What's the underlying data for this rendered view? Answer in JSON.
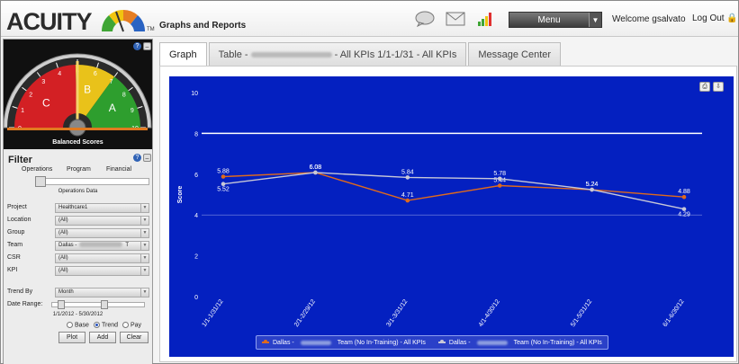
{
  "app": {
    "logo_text": "ACUITY",
    "logo_tm": "TM",
    "title": "Graphs and Reports",
    "menu_label": "Menu",
    "welcome": "Welcome gsalvato",
    "logout": "Log Out"
  },
  "gauge": {
    "caption": "Balanced Scores",
    "needle_value": 5,
    "zones": [
      "C",
      "B",
      "A"
    ],
    "ticks": [
      "0",
      "1",
      "2",
      "3",
      "4",
      "5",
      "6",
      "7",
      "8",
      "9",
      "10"
    ]
  },
  "filter": {
    "title": "Filter",
    "categories": [
      "Operations",
      "Program",
      "Financial"
    ],
    "slider_caption": "Operations Data",
    "fields": [
      {
        "label": "Project",
        "value": "Healthcare1"
      },
      {
        "label": "Location",
        "value": "(All)"
      },
      {
        "label": "Group",
        "value": "(All)"
      },
      {
        "label": "Team",
        "value": "Dallas -",
        "value_suffix": "T"
      },
      {
        "label": "CSR",
        "value": "(All)"
      },
      {
        "label": "KPI",
        "value": "(All)"
      },
      {
        "label": "Trend By",
        "value": "Month"
      }
    ],
    "date_range_label": "Date Range:",
    "date_range": "1/1/2012 - 5/30/2012",
    "radio_options": [
      "Base",
      "Trend",
      "Pay"
    ],
    "radio_selected": "Trend",
    "buttons": [
      "Plot",
      "Add",
      "Clear"
    ]
  },
  "tabs": [
    {
      "label": "Graph",
      "active": true
    },
    {
      "prefix": "Table - ",
      "suffix": " - All KPIs 1/1-1/31 - All KPIs",
      "active": false
    },
    {
      "label": "Message Center",
      "active": false
    }
  ],
  "chart_data": {
    "type": "line",
    "ylabel": "Score",
    "ylim": [
      0,
      10
    ],
    "yticks": [
      0,
      2,
      4,
      6,
      8,
      10
    ],
    "reference_line": 8,
    "categories": [
      "1/1-1/31/12",
      "2/1-2/29/12",
      "3/1-3/31/12",
      "4/1-4/30/12",
      "5/1-5/31/12",
      "6/1-6/30/12"
    ],
    "series": [
      {
        "legend_prefix": "Dallas - ",
        "legend_suffix": " Team (No In-Training) - All KPIs",
        "color": "#e06a1c",
        "values": [
          5.88,
          6.08,
          4.71,
          5.44,
          5.24,
          4.88
        ]
      },
      {
        "legend_prefix": "Dallas - ",
        "legend_suffix": " Team (No In-Training) - All KPIs",
        "color": "#c8c8d8",
        "values": [
          5.52,
          6.08,
          5.84,
          5.78,
          5.24,
          4.29
        ]
      }
    ],
    "grid": false,
    "legend_position": "bottom"
  }
}
